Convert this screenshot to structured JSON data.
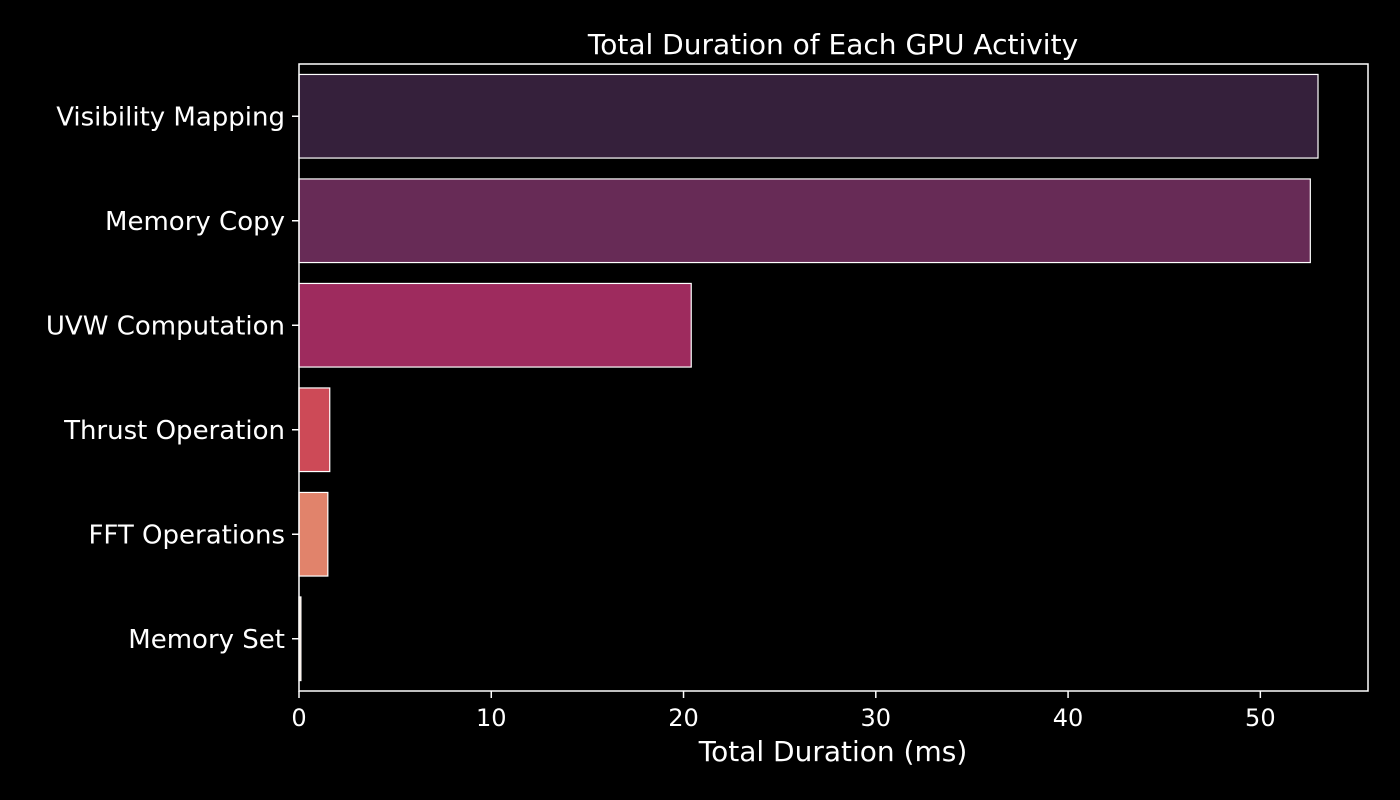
{
  "chart_data": {
    "type": "bar",
    "orientation": "horizontal",
    "title": "Total Duration of Each GPU Activity",
    "xlabel": "Total Duration (ms)",
    "ylabel": "",
    "categories": [
      "Visibility Mapping",
      "Memory Copy",
      "UVW Computation",
      "Thrust Operation",
      "FFT Operations",
      "Memory Set"
    ],
    "values": [
      53.0,
      52.6,
      20.4,
      1.6,
      1.5,
      0.1
    ],
    "bar_colors": [
      "#35203b",
      "#672b56",
      "#9e2b5e",
      "#cd4a57",
      "#e1836b",
      "#f6d8c3"
    ],
    "xlim": [
      0,
      55.6
    ],
    "xticks": [
      0,
      10,
      20,
      30,
      40,
      50
    ],
    "xtick_labels": [
      "0",
      "10",
      "20",
      "30",
      "40",
      "50"
    ],
    "grid": false,
    "legend": "none",
    "background": "#000000",
    "foreground": "#ffffff"
  }
}
